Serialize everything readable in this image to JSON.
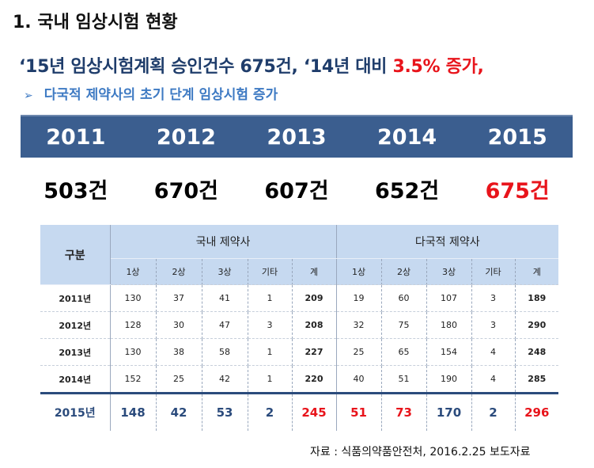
{
  "title": "1. 국내 임상시험 현황",
  "headline": {
    "prefix": "‘15년 임상시험계획 승인건수 675건, ‘14년 대비 ",
    "highlight": "3.5% 증가,"
  },
  "subheadline": {
    "bullet": "➢",
    "text": "다국적 제약사의 초기 단계 임상시험 증가"
  },
  "years": [
    "2011",
    "2012",
    "2013",
    "2014",
    "2015"
  ],
  "counts": [
    "503건",
    "670건",
    "607건",
    "652건",
    "675건"
  ],
  "colors": {
    "bar": "#3b5e8f",
    "header": "#c6d9f0",
    "red": "#e8141b",
    "navy": "#2b4b7c"
  },
  "table": {
    "gubun": "구분",
    "domestic_label": "국내 제약사",
    "multinational_label": "다국적 제약사",
    "sub_headers": [
      "1상",
      "2상",
      "3상",
      "기타",
      "계",
      "1상",
      "2상",
      "3상",
      "기타",
      "계"
    ],
    "rows": [
      {
        "year": "2011년",
        "cells": [
          "130",
          "37",
          "41",
          "1",
          "209",
          "19",
          "60",
          "107",
          "3",
          "189"
        ]
      },
      {
        "year": "2012년",
        "cells": [
          "128",
          "30",
          "47",
          "3",
          "208",
          "32",
          "75",
          "180",
          "3",
          "290"
        ]
      },
      {
        "year": "2013년",
        "cells": [
          "130",
          "38",
          "58",
          "1",
          "227",
          "25",
          "65",
          "154",
          "4",
          "248"
        ]
      },
      {
        "year": "2014년",
        "cells": [
          "152",
          "25",
          "42",
          "1",
          "220",
          "40",
          "51",
          "190",
          "4",
          "285"
        ]
      }
    ],
    "total_row": {
      "year": "2015년",
      "cells": [
        "148",
        "42",
        "53",
        "2",
        "245",
        "51",
        "73",
        "170",
        "2",
        "296"
      ]
    }
  },
  "source": "자료 : 식품의약품안전처, 2016.2.25 보도자료"
}
